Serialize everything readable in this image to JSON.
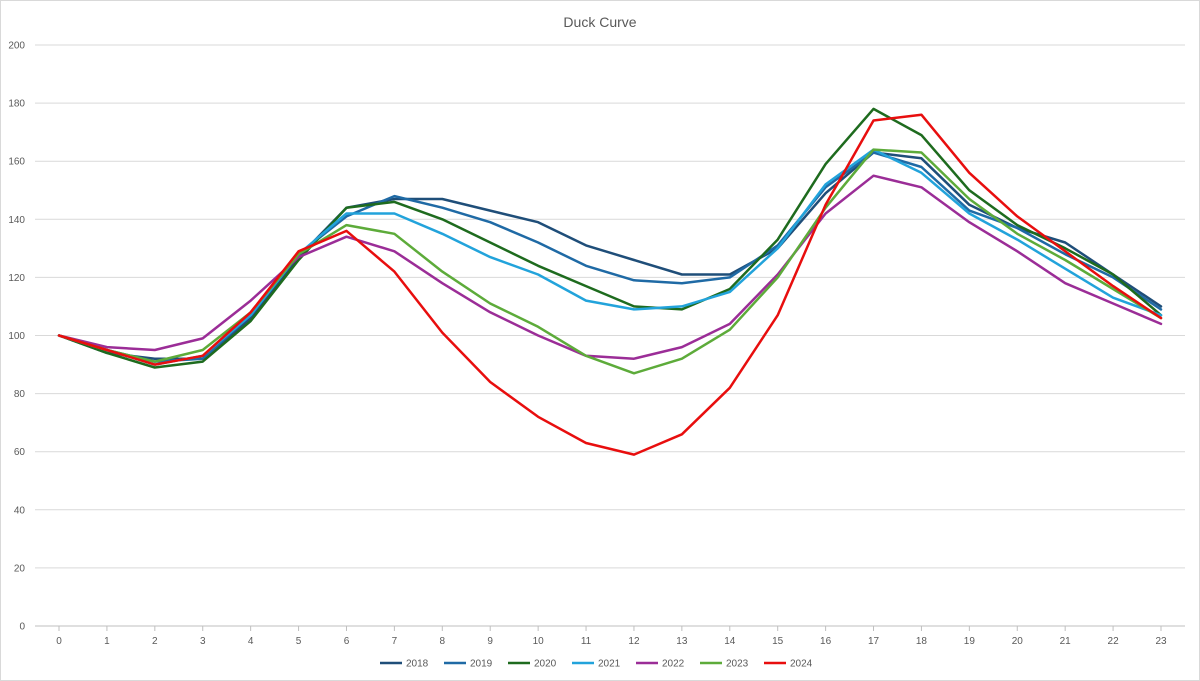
{
  "chart_data": {
    "type": "line",
    "title": "Duck Curve",
    "xlabel": "",
    "ylabel": "",
    "x": [
      0,
      1,
      2,
      3,
      4,
      5,
      6,
      7,
      8,
      9,
      10,
      11,
      12,
      13,
      14,
      15,
      16,
      17,
      18,
      19,
      20,
      21,
      22,
      23
    ],
    "ylim": [
      0,
      200
    ],
    "yticks": [
      0,
      20,
      40,
      60,
      80,
      100,
      120,
      140,
      160,
      180,
      200
    ],
    "grid": "horizontal",
    "legend": "bottom",
    "series": [
      {
        "name": "2018",
        "color": "#1f4e79",
        "values": [
          100,
          94,
          92,
          92,
          106,
          127,
          144,
          147,
          147,
          143,
          139,
          131,
          126,
          121,
          121,
          130,
          149,
          163,
          161,
          145,
          137,
          132,
          121,
          110
        ]
      },
      {
        "name": "2019",
        "color": "#1f6aa5",
        "values": [
          100,
          95,
          91,
          92,
          107,
          128,
          141,
          148,
          144,
          139,
          132,
          124,
          119,
          118,
          120,
          131,
          151,
          163,
          158,
          143,
          137,
          128,
          120,
          109
        ]
      },
      {
        "name": "2020",
        "color": "#1e6b1e",
        "values": [
          100,
          94,
          89,
          91,
          105,
          126,
          144,
          146,
          140,
          132,
          124,
          117,
          110,
          109,
          116,
          133,
          159,
          178,
          169,
          150,
          138,
          130,
          121,
          107
        ]
      },
      {
        "name": "2021",
        "color": "#22a3db",
        "values": [
          100,
          95,
          90,
          93,
          107,
          128,
          142,
          142,
          135,
          127,
          121,
          112,
          109,
          110,
          115,
          130,
          152,
          164,
          156,
          142,
          133,
          123,
          113,
          107
        ]
      },
      {
        "name": "2022",
        "color": "#9b2d97",
        "values": [
          100,
          96,
          95,
          99,
          112,
          127,
          134,
          129,
          118,
          108,
          100,
          93,
          92,
          96,
          104,
          121,
          142,
          155,
          151,
          139,
          129,
          118,
          111,
          104
        ]
      },
      {
        "name": "2023",
        "color": "#5dab3a",
        "values": [
          100,
          95,
          91,
          95,
          108,
          128,
          138,
          135,
          122,
          111,
          103,
          93,
          87,
          92,
          102,
          120,
          144,
          164,
          163,
          147,
          135,
          126,
          116,
          106
        ]
      },
      {
        "name": "2024",
        "color": "#e80e0e",
        "values": [
          100,
          95,
          90,
          93,
          108,
          129,
          136,
          122,
          101,
          84,
          72,
          63,
          59,
          66,
          82,
          107,
          145,
          174,
          176,
          156,
          141,
          129,
          117,
          106
        ]
      }
    ]
  }
}
